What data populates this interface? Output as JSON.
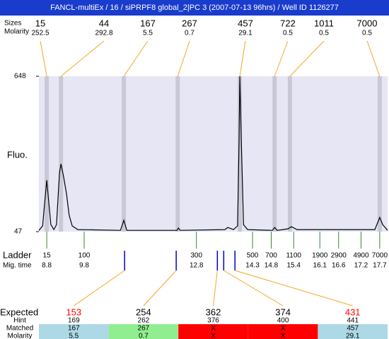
{
  "header": {
    "title": "FANCL-multiEx / 16 / siPRPF8 global_2|PC 3 (2007-07-13 96hrs) / Well ID 1126277"
  },
  "chart_data": {
    "type": "electropherogram",
    "ylabel": "Fluo.",
    "xlim": [
      8.59,
      17.91
    ],
    "ylim": [
      47,
      648
    ],
    "yticks": [
      47,
      648
    ],
    "trace": {
      "color": "#000000",
      "x": [
        8.59,
        8.69,
        8.74,
        8.8,
        8.86,
        8.91,
        8.99,
        9.06,
        9.14,
        9.18,
        9.25,
        9.33,
        9.4,
        9.48,
        9.63,
        10.77,
        10.86,
        10.94,
        12.28,
        12.32,
        12.37,
        13.56,
        13.64,
        13.79,
        13.9,
        13.94,
        13.96,
        14.0,
        14.06,
        14.17,
        14.83,
        14.89,
        14.96,
        15.25,
        15.34,
        15.49,
        17.57,
        17.67,
        17.7,
        17.78,
        17.91
      ],
      "y": [
        52,
        69,
        151,
        246,
        151,
        74,
        55,
        74,
        274,
        309,
        260,
        192,
        110,
        69,
        55,
        52,
        91,
        52,
        52,
        61,
        52,
        55,
        63,
        55,
        69,
        397,
        648,
        397,
        74,
        55,
        52,
        63,
        52,
        58,
        66,
        55,
        55,
        91,
        102,
        74,
        52
      ]
    },
    "peaks": {
      "labels": [
        "Sizes",
        "Molarity"
      ],
      "color": "#c8c8d6",
      "line_color": "#f5a623",
      "sizes": [
        15,
        44,
        167,
        267,
        457,
        722,
        1011,
        7000
      ],
      "molarity": [
        252.5,
        292.8,
        5.5,
        0.7,
        29.1,
        0.5,
        0.5,
        0.5
      ],
      "time": [
        8.8,
        9.18,
        10.86,
        12.3,
        13.96,
        14.89,
        15.3,
        17.7
      ]
    },
    "ladder": {
      "labels": [
        "Ladder",
        "Mig. time"
      ],
      "color": "#2e8b2e",
      "sizes": [
        15,
        100,
        300,
        500,
        700,
        1100,
        1900,
        2900,
        4900,
        7000
      ],
      "time": [
        8.8,
        9.8,
        12.8,
        14.3,
        14.8,
        15.4,
        16.1,
        16.6,
        17.2,
        17.7
      ]
    },
    "fragments": {
      "labels": [
        "Expected",
        "Hint",
        "Matched",
        "Molarity"
      ],
      "color": "#0000cc",
      "line_color": "#f5a623",
      "time": [
        10.88,
        12.26,
        13.36,
        13.53,
        13.83
      ],
      "expected": [
        153,
        254,
        362,
        374,
        431
      ],
      "expected_colors": [
        "#ff0000",
        "#000000",
        "#000000",
        "#000000",
        "#ff0000"
      ],
      "hint": [
        169,
        262,
        376,
        400,
        441
      ],
      "matched": [
        167,
        267,
        "X",
        "X",
        457
      ],
      "molarity": [
        5.5,
        0.7,
        "X",
        "X",
        29.1
      ],
      "row_colors": [
        "#add8e6",
        "#90ee90",
        "#ff0000",
        "#ff0000",
        "#add8e6"
      ]
    }
  }
}
